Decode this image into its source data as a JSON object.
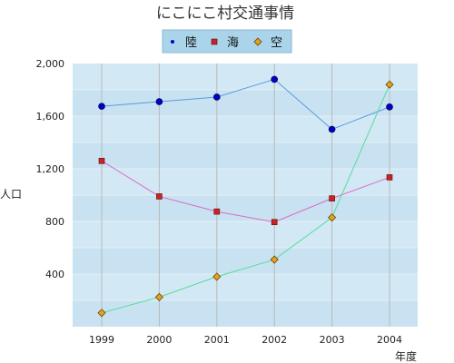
{
  "chart_data": {
    "type": "line",
    "title": "にこにこ村交通事情",
    "xlabel": "年度",
    "ylabel": "人口",
    "categories": [
      "1999",
      "2000",
      "2001",
      "2002",
      "2003",
      "2004"
    ],
    "ylim": [
      0,
      2000
    ],
    "yticks": [
      400,
      800,
      1200,
      1600,
      2000
    ],
    "ytick_labels": [
      "400",
      "800",
      "1,200",
      "1,600",
      "2,000"
    ],
    "grid": true,
    "legend_position": "top-center",
    "series": [
      {
        "name": "陸",
        "values": [
          1675,
          1710,
          1745,
          1880,
          1500,
          1670
        ],
        "color": "#5b9ae0",
        "marker": "circle",
        "marker_color": "#0000cc"
      },
      {
        "name": "海",
        "values": [
          1260,
          990,
          875,
          795,
          975,
          1135
        ],
        "color": "#d86ac6",
        "marker": "square",
        "marker_color": "#cc2222"
      },
      {
        "name": "空",
        "values": [
          105,
          225,
          380,
          510,
          830,
          1840
        ],
        "color": "#55dd99",
        "marker": "diamond",
        "marker_color": "#e8a020"
      }
    ]
  }
}
